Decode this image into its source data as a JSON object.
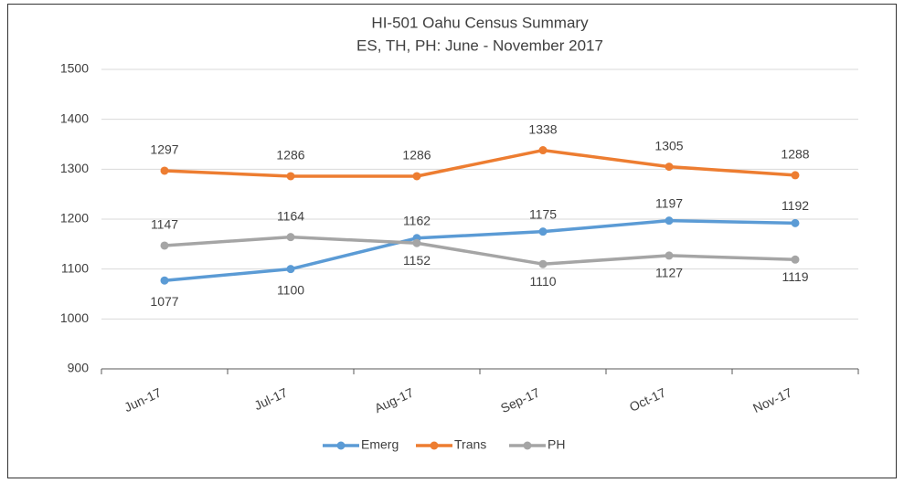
{
  "chart_data": {
    "type": "line",
    "title": "HI-501 Oahu Census Summary",
    "subtitle": "ES, TH, PH: June - November 2017",
    "categories": [
      "Jun-17",
      "Jul-17",
      "Aug-17",
      "Sep-17",
      "Oct-17",
      "Nov-17"
    ],
    "series": [
      {
        "name": "Emerg",
        "color": "#5b9bd5",
        "values": [
          1077,
          1100,
          1162,
          1175,
          1197,
          1192
        ]
      },
      {
        "name": "Trans",
        "color": "#ed7d31",
        "values": [
          1297,
          1286,
          1286,
          1338,
          1305,
          1288
        ]
      },
      {
        "name": "PH",
        "color": "#a5a5a5",
        "values": [
          1147,
          1164,
          1152,
          1110,
          1127,
          1119
        ]
      }
    ],
    "ylim": [
      900,
      1500
    ],
    "yticks": [
      900,
      1000,
      1100,
      1200,
      1300,
      1400,
      1500
    ],
    "grid": true,
    "legend": "bottom"
  }
}
